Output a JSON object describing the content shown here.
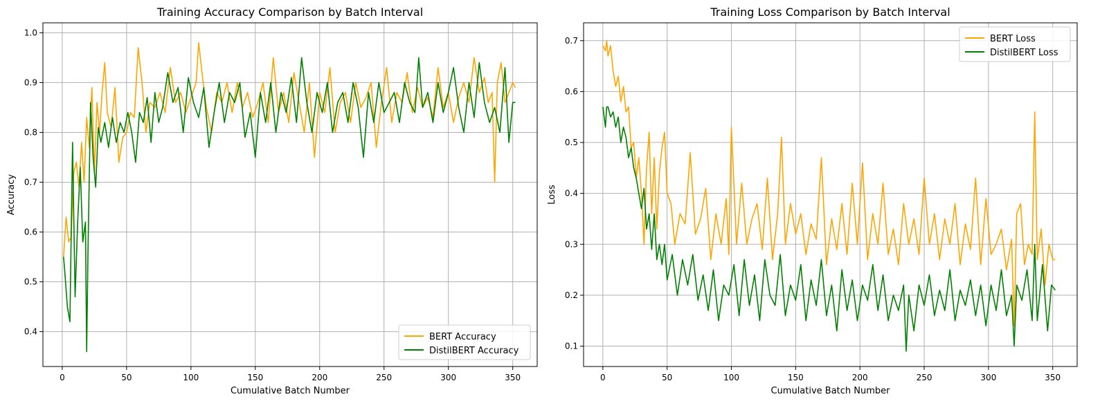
{
  "colors": {
    "bert": "#FFA500",
    "distilbert": "#008000",
    "grid": "#b0b0b0",
    "frame": "#000000"
  },
  "chart_data": [
    {
      "type": "line",
      "title": "Training Accuracy Comparison by Batch Interval",
      "xlabel": "Cumulative Batch Number",
      "ylabel": "Accuracy",
      "xlim": [
        -15,
        369
      ],
      "ylim": [
        0.33,
        1.02
      ],
      "xticks": [
        0,
        50,
        100,
        150,
        200,
        250,
        300,
        350
      ],
      "yticks": [
        0.4,
        0.5,
        0.6,
        0.7,
        0.8,
        0.9,
        1.0
      ],
      "xtick_labels": [
        "0",
        "50",
        "100",
        "150",
        "200",
        "250",
        "300",
        "350"
      ],
      "ytick_labels": [
        "0.4",
        "0.5",
        "0.6",
        "0.7",
        "0.8",
        "0.9",
        "1.0"
      ],
      "grid": true,
      "legend_position": "lower-right",
      "series": [
        {
          "name": "BERT Accuracy",
          "color": "#FFA500",
          "x": [
            1,
            3,
            5,
            7,
            9,
            11,
            13,
            15,
            17,
            19,
            21,
            23,
            25,
            27,
            29,
            31,
            33,
            35,
            38,
            41,
            44,
            47,
            50,
            53,
            56,
            59,
            62,
            65,
            68,
            72,
            76,
            80,
            84,
            88,
            92,
            96,
            100,
            104,
            106,
            109,
            112,
            116,
            120,
            124,
            128,
            132,
            136,
            140,
            144,
            148,
            152,
            156,
            160,
            164,
            168,
            172,
            176,
            180,
            184,
            188,
            192,
            196,
            200,
            204,
            208,
            212,
            216,
            220,
            224,
            228,
            232,
            236,
            240,
            244,
            248,
            252,
            256,
            260,
            264,
            268,
            272,
            276,
            280,
            284,
            288,
            292,
            296,
            300,
            304,
            308,
            312,
            316,
            320,
            324,
            328,
            331,
            334,
            336,
            338,
            341,
            344,
            347,
            350,
            352
          ],
          "y": [
            0.55,
            0.63,
            0.58,
            0.59,
            0.72,
            0.74,
            0.69,
            0.78,
            0.7,
            0.83,
            0.77,
            0.89,
            0.72,
            0.86,
            0.8,
            0.88,
            0.94,
            0.84,
            0.81,
            0.89,
            0.74,
            0.79,
            0.8,
            0.84,
            0.83,
            0.97,
            0.9,
            0.8,
            0.86,
            0.85,
            0.88,
            0.84,
            0.93,
            0.86,
            0.88,
            0.84,
            0.87,
            0.9,
            0.98,
            0.91,
            0.85,
            0.8,
            0.88,
            0.86,
            0.9,
            0.84,
            0.9,
            0.85,
            0.88,
            0.83,
            0.86,
            0.9,
            0.82,
            0.95,
            0.84,
            0.88,
            0.82,
            0.92,
            0.86,
            0.8,
            0.9,
            0.75,
            0.88,
            0.84,
            0.93,
            0.8,
            0.86,
            0.88,
            0.82,
            0.9,
            0.85,
            0.87,
            0.9,
            0.77,
            0.86,
            0.93,
            0.82,
            0.88,
            0.86,
            0.92,
            0.84,
            0.89,
            0.85,
            0.87,
            0.83,
            0.93,
            0.85,
            0.88,
            0.82,
            0.87,
            0.9,
            0.86,
            0.95,
            0.88,
            0.91,
            0.86,
            0.88,
            0.7,
            0.9,
            0.94,
            0.86,
            0.88,
            0.9,
            0.89
          ]
        },
        {
          "name": "DistilBERT Accuracy",
          "color": "#008000",
          "x": [
            1,
            2,
            4,
            6,
            8,
            10,
            12,
            14,
            16,
            18,
            19,
            20,
            22,
            24,
            26,
            28,
            30,
            33,
            36,
            39,
            42,
            45,
            48,
            51,
            54,
            57,
            60,
            63,
            66,
            69,
            72,
            75,
            78,
            82,
            86,
            90,
            94,
            98,
            102,
            106,
            110,
            114,
            118,
            122,
            126,
            130,
            134,
            138,
            142,
            146,
            150,
            154,
            158,
            162,
            166,
            170,
            174,
            178,
            182,
            186,
            190,
            194,
            198,
            202,
            206,
            210,
            214,
            218,
            222,
            226,
            230,
            234,
            238,
            242,
            246,
            250,
            254,
            258,
            262,
            266,
            270,
            274,
            277,
            280,
            284,
            288,
            292,
            296,
            300,
            304,
            308,
            312,
            316,
            320,
            324,
            328,
            332,
            336,
            340,
            344,
            347,
            350,
            352
          ],
          "y": [
            0.55,
            0.52,
            0.45,
            0.42,
            0.78,
            0.47,
            0.62,
            0.73,
            0.58,
            0.62,
            0.36,
            0.56,
            0.86,
            0.75,
            0.69,
            0.81,
            0.78,
            0.82,
            0.77,
            0.83,
            0.78,
            0.82,
            0.8,
            0.84,
            0.8,
            0.74,
            0.84,
            0.82,
            0.87,
            0.78,
            0.88,
            0.82,
            0.85,
            0.92,
            0.86,
            0.89,
            0.8,
            0.91,
            0.86,
            0.83,
            0.89,
            0.77,
            0.84,
            0.9,
            0.82,
            0.88,
            0.86,
            0.9,
            0.79,
            0.84,
            0.75,
            0.88,
            0.82,
            0.9,
            0.8,
            0.88,
            0.84,
            0.91,
            0.82,
            0.95,
            0.86,
            0.8,
            0.88,
            0.84,
            0.9,
            0.8,
            0.86,
            0.88,
            0.82,
            0.9,
            0.85,
            0.75,
            0.88,
            0.82,
            0.9,
            0.84,
            0.86,
            0.88,
            0.82,
            0.9,
            0.86,
            0.84,
            0.95,
            0.85,
            0.88,
            0.82,
            0.9,
            0.84,
            0.88,
            0.93,
            0.85,
            0.8,
            0.9,
            0.83,
            0.94,
            0.86,
            0.82,
            0.85,
            0.8,
            0.93,
            0.78,
            0.86,
            0.86
          ]
        }
      ]
    },
    {
      "type": "line",
      "title": "Training Loss Comparison by Batch Interval",
      "xlabel": "Cumulative Batch Number",
      "ylabel": "Loss",
      "xlim": [
        -15,
        369
      ],
      "ylim": [
        0.06,
        0.735
      ],
      "xticks": [
        0,
        50,
        100,
        150,
        200,
        250,
        300,
        350
      ],
      "yticks": [
        0.1,
        0.2,
        0.3,
        0.4,
        0.5,
        0.6,
        0.7
      ],
      "xtick_labels": [
        "0",
        "50",
        "100",
        "150",
        "200",
        "250",
        "300",
        "350"
      ],
      "ytick_labels": [
        "0.1",
        "0.2",
        "0.3",
        "0.4",
        "0.5",
        "0.6",
        "0.7"
      ],
      "grid": true,
      "legend_position": "upper-right",
      "series": [
        {
          "name": "BERT Loss",
          "color": "#FFA500",
          "x": [
            0,
            2,
            3,
            4,
            6,
            8,
            10,
            12,
            14,
            16,
            18,
            20,
            22,
            24,
            26,
            28,
            30,
            32,
            34,
            36,
            38,
            40,
            42,
            44,
            46,
            48,
            50,
            53,
            56,
            60,
            64,
            68,
            72,
            76,
            80,
            84,
            88,
            92,
            96,
            98,
            100,
            104,
            108,
            112,
            116,
            120,
            124,
            128,
            132,
            136,
            139,
            142,
            146,
            150,
            154,
            158,
            162,
            166,
            170,
            174,
            178,
            182,
            186,
            190,
            194,
            198,
            202,
            206,
            210,
            214,
            218,
            222,
            226,
            230,
            234,
            238,
            242,
            246,
            250,
            254,
            258,
            262,
            266,
            270,
            274,
            278,
            282,
            286,
            290,
            294,
            298,
            302,
            306,
            310,
            314,
            318,
            320,
            322,
            325,
            328,
            331,
            334,
            336,
            338,
            341,
            344,
            347,
            350,
            352
          ],
          "y": [
            0.69,
            0.68,
            0.7,
            0.67,
            0.69,
            0.64,
            0.61,
            0.63,
            0.58,
            0.61,
            0.56,
            0.57,
            0.49,
            0.5,
            0.43,
            0.47,
            0.4,
            0.3,
            0.45,
            0.52,
            0.36,
            0.47,
            0.33,
            0.44,
            0.49,
            0.52,
            0.4,
            0.38,
            0.3,
            0.36,
            0.34,
            0.48,
            0.32,
            0.35,
            0.41,
            0.27,
            0.36,
            0.3,
            0.39,
            0.28,
            0.53,
            0.3,
            0.42,
            0.3,
            0.35,
            0.38,
            0.29,
            0.43,
            0.27,
            0.36,
            0.51,
            0.3,
            0.38,
            0.32,
            0.36,
            0.28,
            0.34,
            0.31,
            0.47,
            0.26,
            0.35,
            0.29,
            0.38,
            0.28,
            0.42,
            0.3,
            0.46,
            0.27,
            0.36,
            0.3,
            0.42,
            0.28,
            0.33,
            0.26,
            0.38,
            0.3,
            0.35,
            0.28,
            0.43,
            0.3,
            0.36,
            0.27,
            0.35,
            0.3,
            0.38,
            0.26,
            0.34,
            0.29,
            0.43,
            0.26,
            0.39,
            0.28,
            0.3,
            0.33,
            0.25,
            0.31,
            0.14,
            0.36,
            0.38,
            0.26,
            0.3,
            0.28,
            0.56,
            0.27,
            0.33,
            0.22,
            0.3,
            0.27,
            0.27
          ]
        },
        {
          "name": "DistilBERT Loss",
          "color": "#008000",
          "x": [
            0,
            2,
            3,
            4,
            6,
            8,
            10,
            12,
            14,
            16,
            18,
            20,
            22,
            24,
            26,
            28,
            30,
            32,
            34,
            36,
            38,
            40,
            42,
            44,
            46,
            48,
            50,
            54,
            58,
            62,
            66,
            70,
            74,
            78,
            82,
            86,
            90,
            94,
            98,
            102,
            106,
            110,
            114,
            118,
            122,
            126,
            130,
            134,
            138,
            142,
            146,
            150,
            154,
            158,
            162,
            166,
            170,
            174,
            178,
            182,
            186,
            190,
            194,
            198,
            202,
            206,
            210,
            214,
            218,
            222,
            226,
            230,
            234,
            236,
            238,
            242,
            246,
            250,
            254,
            258,
            262,
            266,
            270,
            274,
            278,
            282,
            286,
            290,
            294,
            298,
            302,
            306,
            310,
            314,
            318,
            320,
            322,
            326,
            330,
            334,
            336,
            338,
            342,
            346,
            349,
            352
          ],
          "y": [
            0.57,
            0.53,
            0.57,
            0.57,
            0.55,
            0.56,
            0.53,
            0.55,
            0.5,
            0.53,
            0.51,
            0.47,
            0.49,
            0.45,
            0.43,
            0.4,
            0.37,
            0.41,
            0.33,
            0.36,
            0.29,
            0.36,
            0.27,
            0.3,
            0.26,
            0.3,
            0.23,
            0.28,
            0.2,
            0.27,
            0.22,
            0.28,
            0.19,
            0.24,
            0.17,
            0.25,
            0.15,
            0.22,
            0.2,
            0.26,
            0.16,
            0.27,
            0.18,
            0.24,
            0.15,
            0.27,
            0.2,
            0.18,
            0.28,
            0.16,
            0.22,
            0.19,
            0.26,
            0.15,
            0.23,
            0.18,
            0.27,
            0.16,
            0.22,
            0.13,
            0.25,
            0.17,
            0.23,
            0.15,
            0.22,
            0.19,
            0.26,
            0.17,
            0.24,
            0.15,
            0.2,
            0.17,
            0.22,
            0.09,
            0.2,
            0.13,
            0.22,
            0.18,
            0.24,
            0.16,
            0.21,
            0.17,
            0.25,
            0.15,
            0.21,
            0.18,
            0.23,
            0.16,
            0.22,
            0.14,
            0.22,
            0.17,
            0.25,
            0.16,
            0.2,
            0.1,
            0.22,
            0.19,
            0.25,
            0.15,
            0.3,
            0.15,
            0.26,
            0.13,
            0.22,
            0.21
          ]
        }
      ]
    }
  ]
}
